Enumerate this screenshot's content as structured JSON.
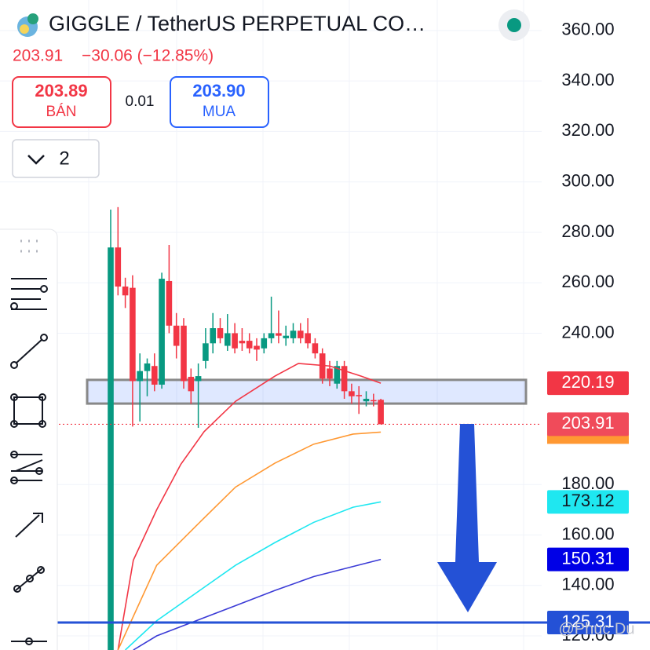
{
  "header": {
    "symbol": "GIGGLE / TetherUS PERPETUAL CO…",
    "price": "203.91",
    "change": "−30.06 (−12.85%)",
    "sell_price": "203.89",
    "sell_label": "BÁN",
    "spread": "0.01",
    "buy_price": "203.90",
    "buy_label": "MUA",
    "interval": "2",
    "watermark": "@Phuc Du"
  },
  "chart_data": {
    "type": "candlestick",
    "ylim": [
      114.4,
      369
    ],
    "yticks": [
      {
        "value": 120,
        "label": "120.00"
      },
      {
        "value": 140,
        "label": "140.00"
      },
      {
        "value": 160,
        "label": "160.00"
      },
      {
        "value": 180,
        "label": "180.00"
      },
      {
        "value": 240,
        "label": "240.00"
      },
      {
        "value": 260,
        "label": "260.00"
      },
      {
        "value": 280,
        "label": "280.00"
      },
      {
        "value": 300,
        "label": "300.00"
      },
      {
        "value": 320,
        "label": "320.00"
      },
      {
        "value": 340,
        "label": "340.00"
      },
      {
        "value": 360,
        "label": "360.00"
      }
    ],
    "grid": true,
    "up_color": "#089981",
    "down_color": "#f23645",
    "candles": [
      {
        "open": 114.4,
        "high": 289,
        "low": 114.4,
        "close": 274
      },
      {
        "open": 274,
        "high": 290,
        "low": 255,
        "close": 258.5
      },
      {
        "open": 258.5,
        "high": 262,
        "low": 250,
        "close": 255
      },
      {
        "open": 258,
        "high": 263,
        "low": 203,
        "close": 221
      },
      {
        "open": 221,
        "high": 232,
        "low": 205,
        "close": 225
      },
      {
        "open": 225,
        "high": 230,
        "low": 215,
        "close": 228
      },
      {
        "open": 227,
        "high": 232,
        "low": 217,
        "close": 219.6
      },
      {
        "open": 219.6,
        "high": 264,
        "low": 218,
        "close": 261.6
      },
      {
        "open": 260.7,
        "high": 275,
        "low": 240,
        "close": 243
      },
      {
        "open": 243,
        "high": 248,
        "low": 230,
        "close": 235
      },
      {
        "open": 243,
        "high": 246,
        "low": 218,
        "close": 221
      },
      {
        "open": 222.7,
        "high": 226,
        "low": 212,
        "close": 217
      },
      {
        "open": 221,
        "high": 228,
        "low": 202.5,
        "close": 223
      },
      {
        "open": 229,
        "high": 242,
        "low": 226,
        "close": 236
      },
      {
        "open": 236,
        "high": 248,
        "low": 232,
        "close": 242
      },
      {
        "open": 242,
        "high": 246,
        "low": 236,
        "close": 238
      },
      {
        "open": 235,
        "high": 247.6,
        "low": 233,
        "close": 240
      },
      {
        "open": 240,
        "high": 244,
        "low": 232,
        "close": 234
      },
      {
        "open": 237,
        "high": 242,
        "low": 233,
        "close": 236
      },
      {
        "open": 237,
        "high": 240,
        "low": 232,
        "close": 234
      },
      {
        "open": 235,
        "high": 238,
        "low": 229,
        "close": 233.5
      },
      {
        "open": 234,
        "high": 240,
        "low": 232,
        "close": 238
      },
      {
        "open": 238,
        "high": 254.5,
        "low": 236,
        "close": 240
      },
      {
        "open": 240,
        "high": 249,
        "low": 236,
        "close": 239
      },
      {
        "open": 238,
        "high": 243,
        "low": 235,
        "close": 239
      },
      {
        "open": 238,
        "high": 244,
        "low": 236,
        "close": 241
      },
      {
        "open": 241,
        "high": 244,
        "low": 236,
        "close": 238
      },
      {
        "open": 240,
        "high": 246,
        "low": 234,
        "close": 236
      },
      {
        "open": 236,
        "high": 238,
        "low": 230,
        "close": 232
      },
      {
        "open": 232,
        "high": 234,
        "low": 220,
        "close": 222
      },
      {
        "open": 226,
        "high": 229,
        "low": 219,
        "close": 222
      },
      {
        "open": 220,
        "high": 229,
        "low": 218,
        "close": 227
      },
      {
        "open": 227,
        "high": 229,
        "low": 214,
        "close": 217
      },
      {
        "open": 217,
        "high": 220,
        "low": 212,
        "close": 215
      },
      {
        "open": 215.5,
        "high": 219,
        "low": 208,
        "close": 215
      },
      {
        "open": 213,
        "high": 217,
        "low": 211,
        "close": 214
      },
      {
        "open": 213.5,
        "high": 216,
        "low": 211,
        "close": 213
      },
      {
        "open": 213.6,
        "high": 214,
        "low": 203.91,
        "close": 203.91
      }
    ],
    "series": [
      {
        "color": "#f23645",
        "x": [
          1,
          3.1,
          6.3,
          9.6,
          12.8,
          17.1,
          22.5,
          25.7,
          30,
          34.3,
          37
        ],
        "values": [
          114.4,
          150,
          170,
          188,
          201,
          213,
          223,
          228,
          227,
          223,
          220.19
        ]
      },
      {
        "color": "#ff9832",
        "x": [
          1,
          6.3,
          11.7,
          17.1,
          22.5,
          27.8,
          33.2,
          37
        ],
        "values": [
          114.4,
          148,
          163.6,
          179,
          188.5,
          196,
          200,
          200.8
        ]
      },
      {
        "color": "#1fe7f0",
        "x": [
          2,
          6.3,
          11.7,
          17.1,
          22.5,
          27.8,
          33.2,
          37
        ],
        "values": [
          114.4,
          126,
          137,
          148,
          157,
          165,
          171,
          173.12
        ]
      },
      {
        "color": "#3b3bd6",
        "x": [
          3.1,
          6.3,
          11.7,
          17.1,
          22.5,
          27.8,
          33.2,
          37
        ],
        "values": [
          114.4,
          120,
          126,
          132,
          138,
          143.5,
          147.5,
          150.31
        ]
      }
    ],
    "last_price": 203.91,
    "hline": 125.31,
    "zone": [
      212.1,
      221.5
    ]
  }
}
